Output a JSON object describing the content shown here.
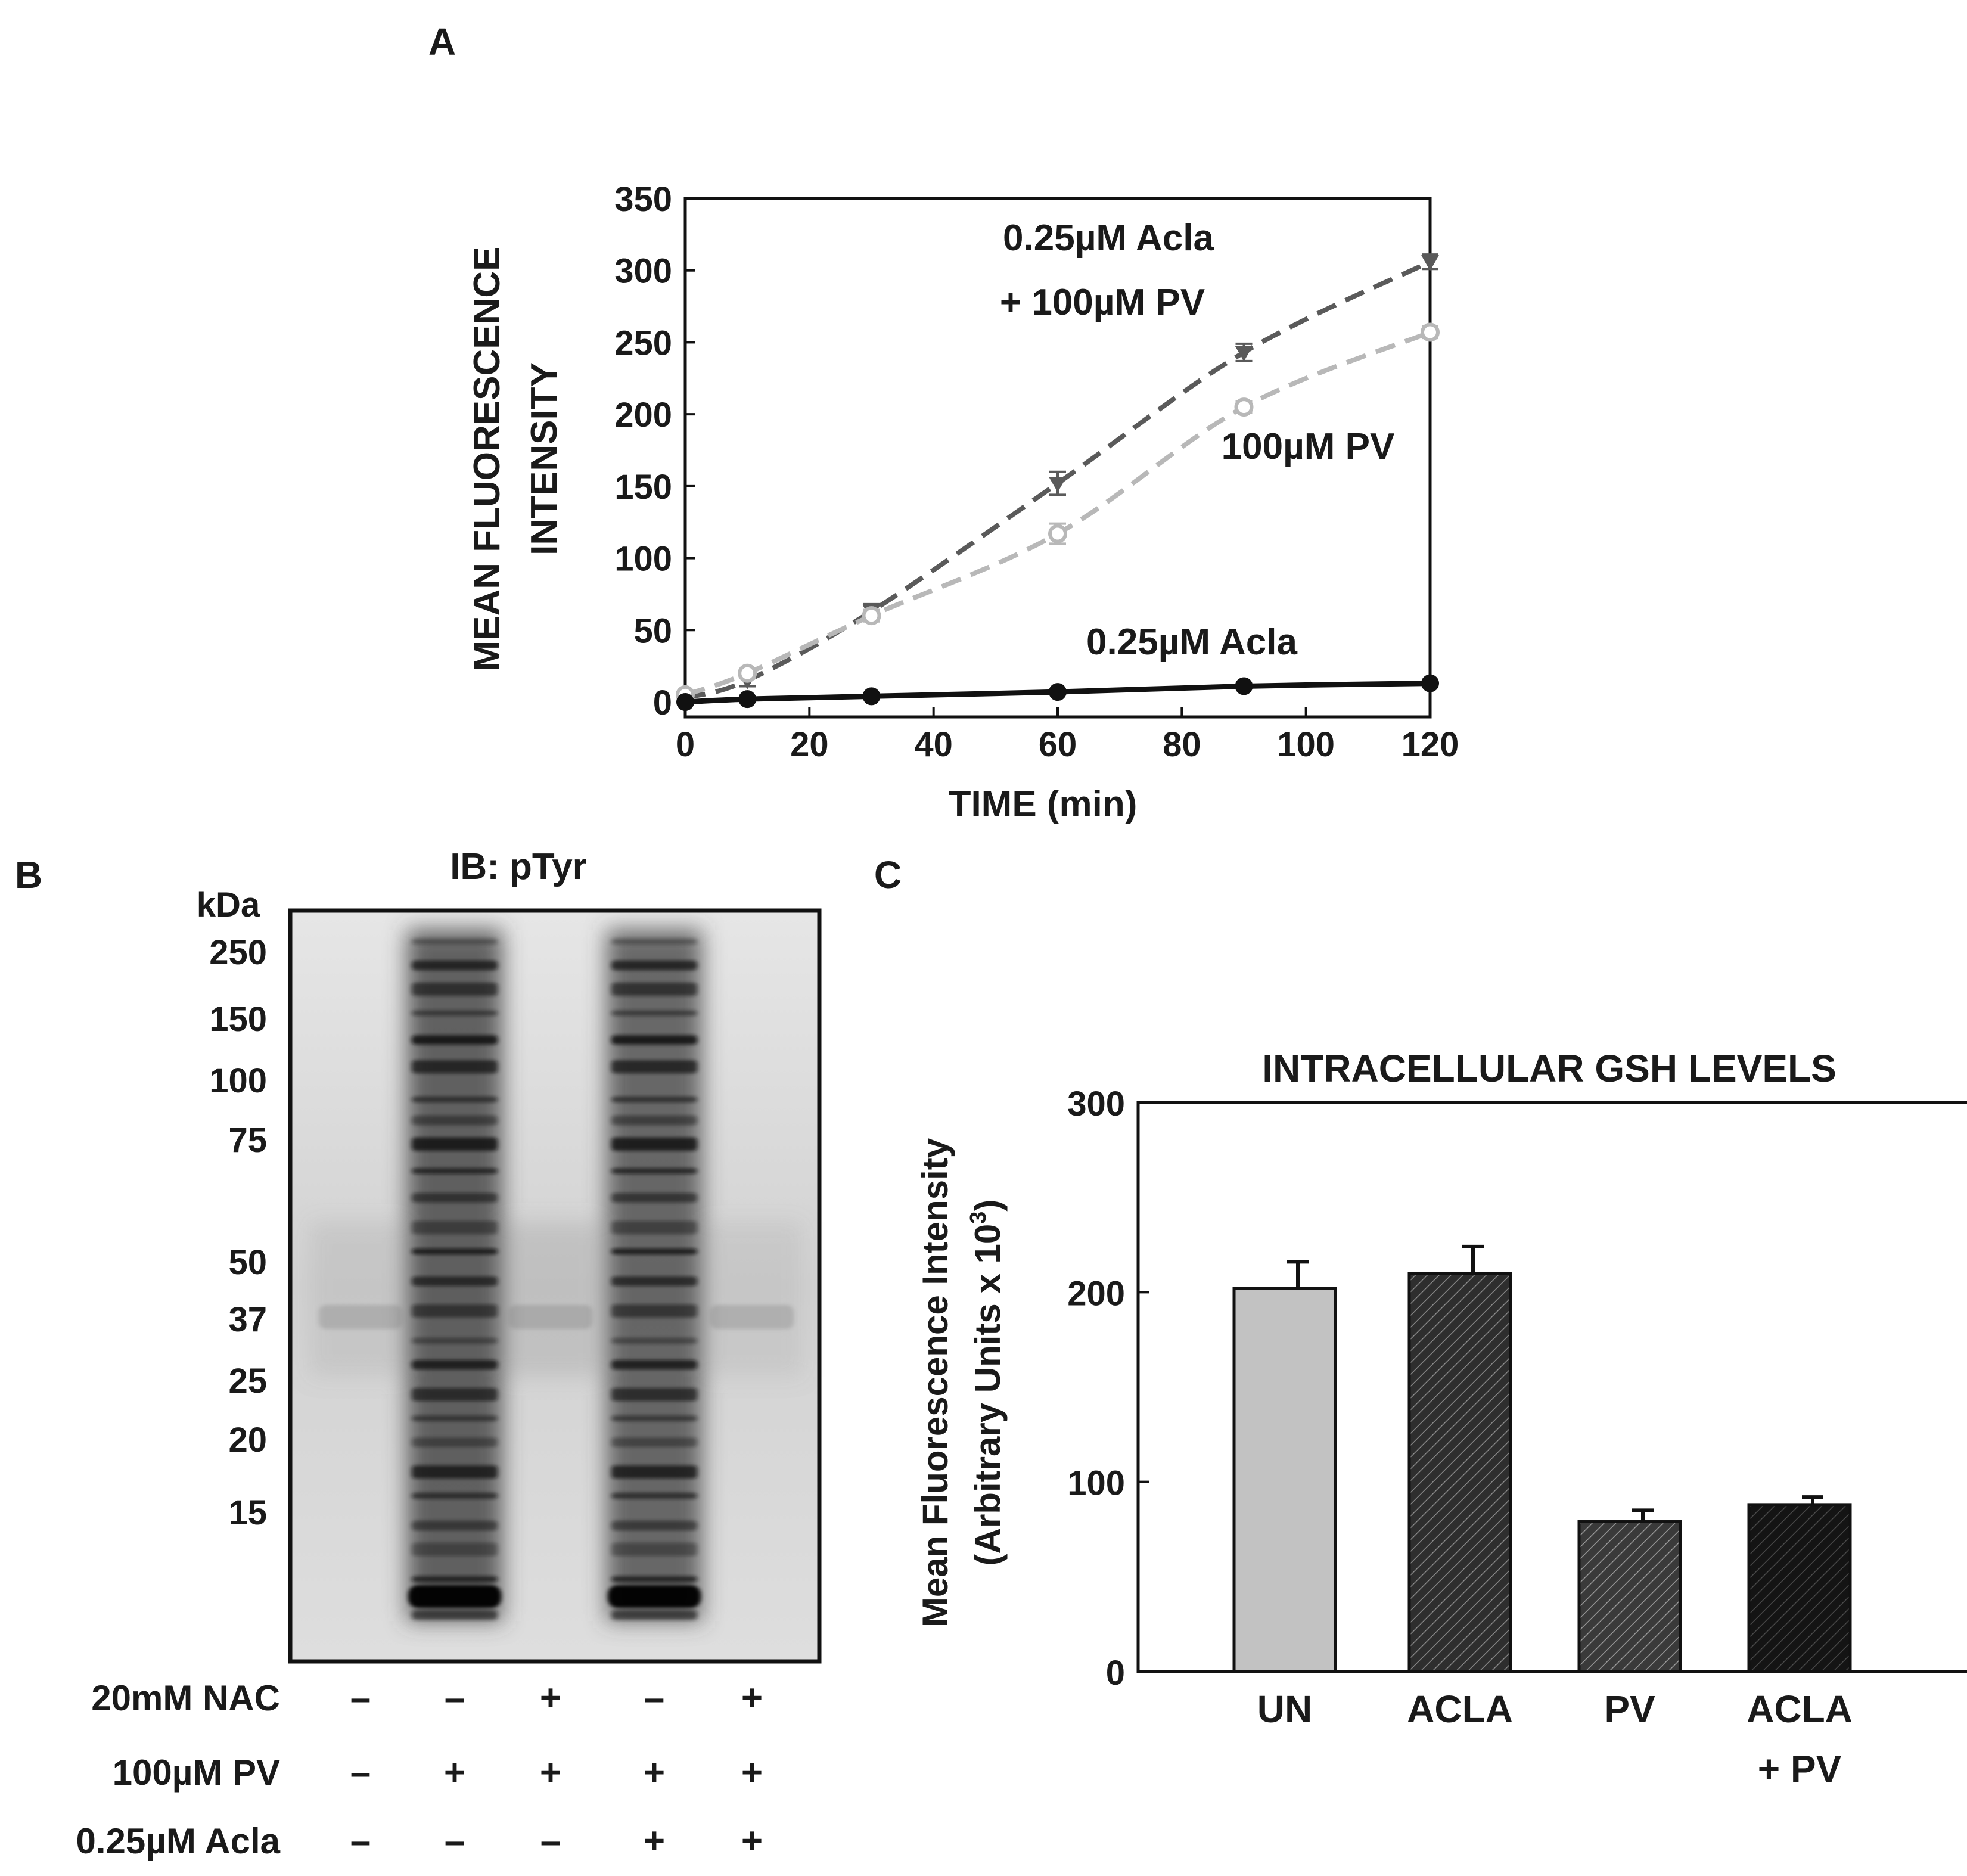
{
  "panels": {
    "a": {
      "letter": "A"
    },
    "b": {
      "letter": "B"
    },
    "c": {
      "letter": "C"
    }
  },
  "chart_data": [
    {
      "panel": "A",
      "type": "line",
      "xlabel": "TIME (min)",
      "ylabel_lines": [
        "MEAN FLUORESCENCE",
        "INTENSITY"
      ],
      "xlim": [
        0,
        120
      ],
      "ylim": [
        0,
        350
      ],
      "xticks": [
        0,
        20,
        40,
        60,
        80,
        100,
        120
      ],
      "yticks": [
        0,
        50,
        100,
        150,
        200,
        250,
        300,
        350
      ],
      "grid": false,
      "series": [
        {
          "label_lines": [
            "0.25µM Acla",
            "+ 100µM PV"
          ],
          "marker": "triangle-down",
          "line": "dashed",
          "color": "#5a5a5a",
          "x": [
            0,
            10,
            30,
            60,
            90,
            120
          ],
          "y": [
            3,
            15,
            63,
            152,
            243,
            306
          ],
          "err": [
            3,
            4,
            5,
            8,
            6,
            5
          ]
        },
        {
          "label_lines": [
            "100µM PV"
          ],
          "marker": "circle-open",
          "line": "dashed",
          "color": "#b8b8b8",
          "x": [
            0,
            10,
            30,
            60,
            90,
            120
          ],
          "y": [
            5,
            20,
            60,
            117,
            205,
            257
          ],
          "err": [
            2,
            3,
            4,
            7,
            4,
            4
          ]
        },
        {
          "label_lines": [
            "0.25µM Acla"
          ],
          "marker": "circle-filled",
          "line": "solid",
          "color": "#111111",
          "x": [
            0,
            10,
            30,
            60,
            90,
            120
          ],
          "y": [
            0,
            2,
            4,
            7,
            11,
            13
          ],
          "err": [
            1,
            1,
            1,
            1,
            1,
            1
          ]
        }
      ]
    },
    {
      "panel": "C",
      "type": "bar",
      "title": "INTRACELLULAR GSH LEVELS",
      "ylabel_lines": [
        "Mean Fluorescence Intensity",
        "(Arbitrary Units x 10",
        "3",
        ")"
      ],
      "ylim": [
        0,
        300
      ],
      "yticks": [
        0,
        100,
        200,
        300
      ],
      "categories": [
        [
          "UN"
        ],
        [
          "ACLA"
        ],
        [
          "PV"
        ],
        [
          "ACLA",
          "+ PV"
        ]
      ],
      "values": [
        202,
        210,
        79,
        88
      ],
      "err": [
        14,
        14,
        6,
        4
      ],
      "fills": [
        "#c2c2c2",
        "#2e2e2e",
        "#3a3a3a",
        "#141414"
      ]
    }
  ],
  "blot": {
    "title": "IB: pTyr",
    "unit": "kDa",
    "markers": [
      "250",
      "150",
      "100",
      "75",
      "50",
      "37",
      "25",
      "20",
      "15"
    ],
    "marker_kda": [
      250,
      150,
      100,
      75,
      50,
      37,
      25,
      20,
      15
    ],
    "conditions": [
      {
        "label": "20mM NAC",
        "signs": [
          "–",
          "–",
          "+",
          "–",
          "+"
        ]
      },
      {
        "label": "100µM PV",
        "signs": [
          "–",
          "+",
          "+",
          "+",
          "+"
        ]
      },
      {
        "label": "0.25µM Acla",
        "signs": [
          "–",
          "–",
          "–",
          "+",
          "+"
        ]
      }
    ]
  }
}
